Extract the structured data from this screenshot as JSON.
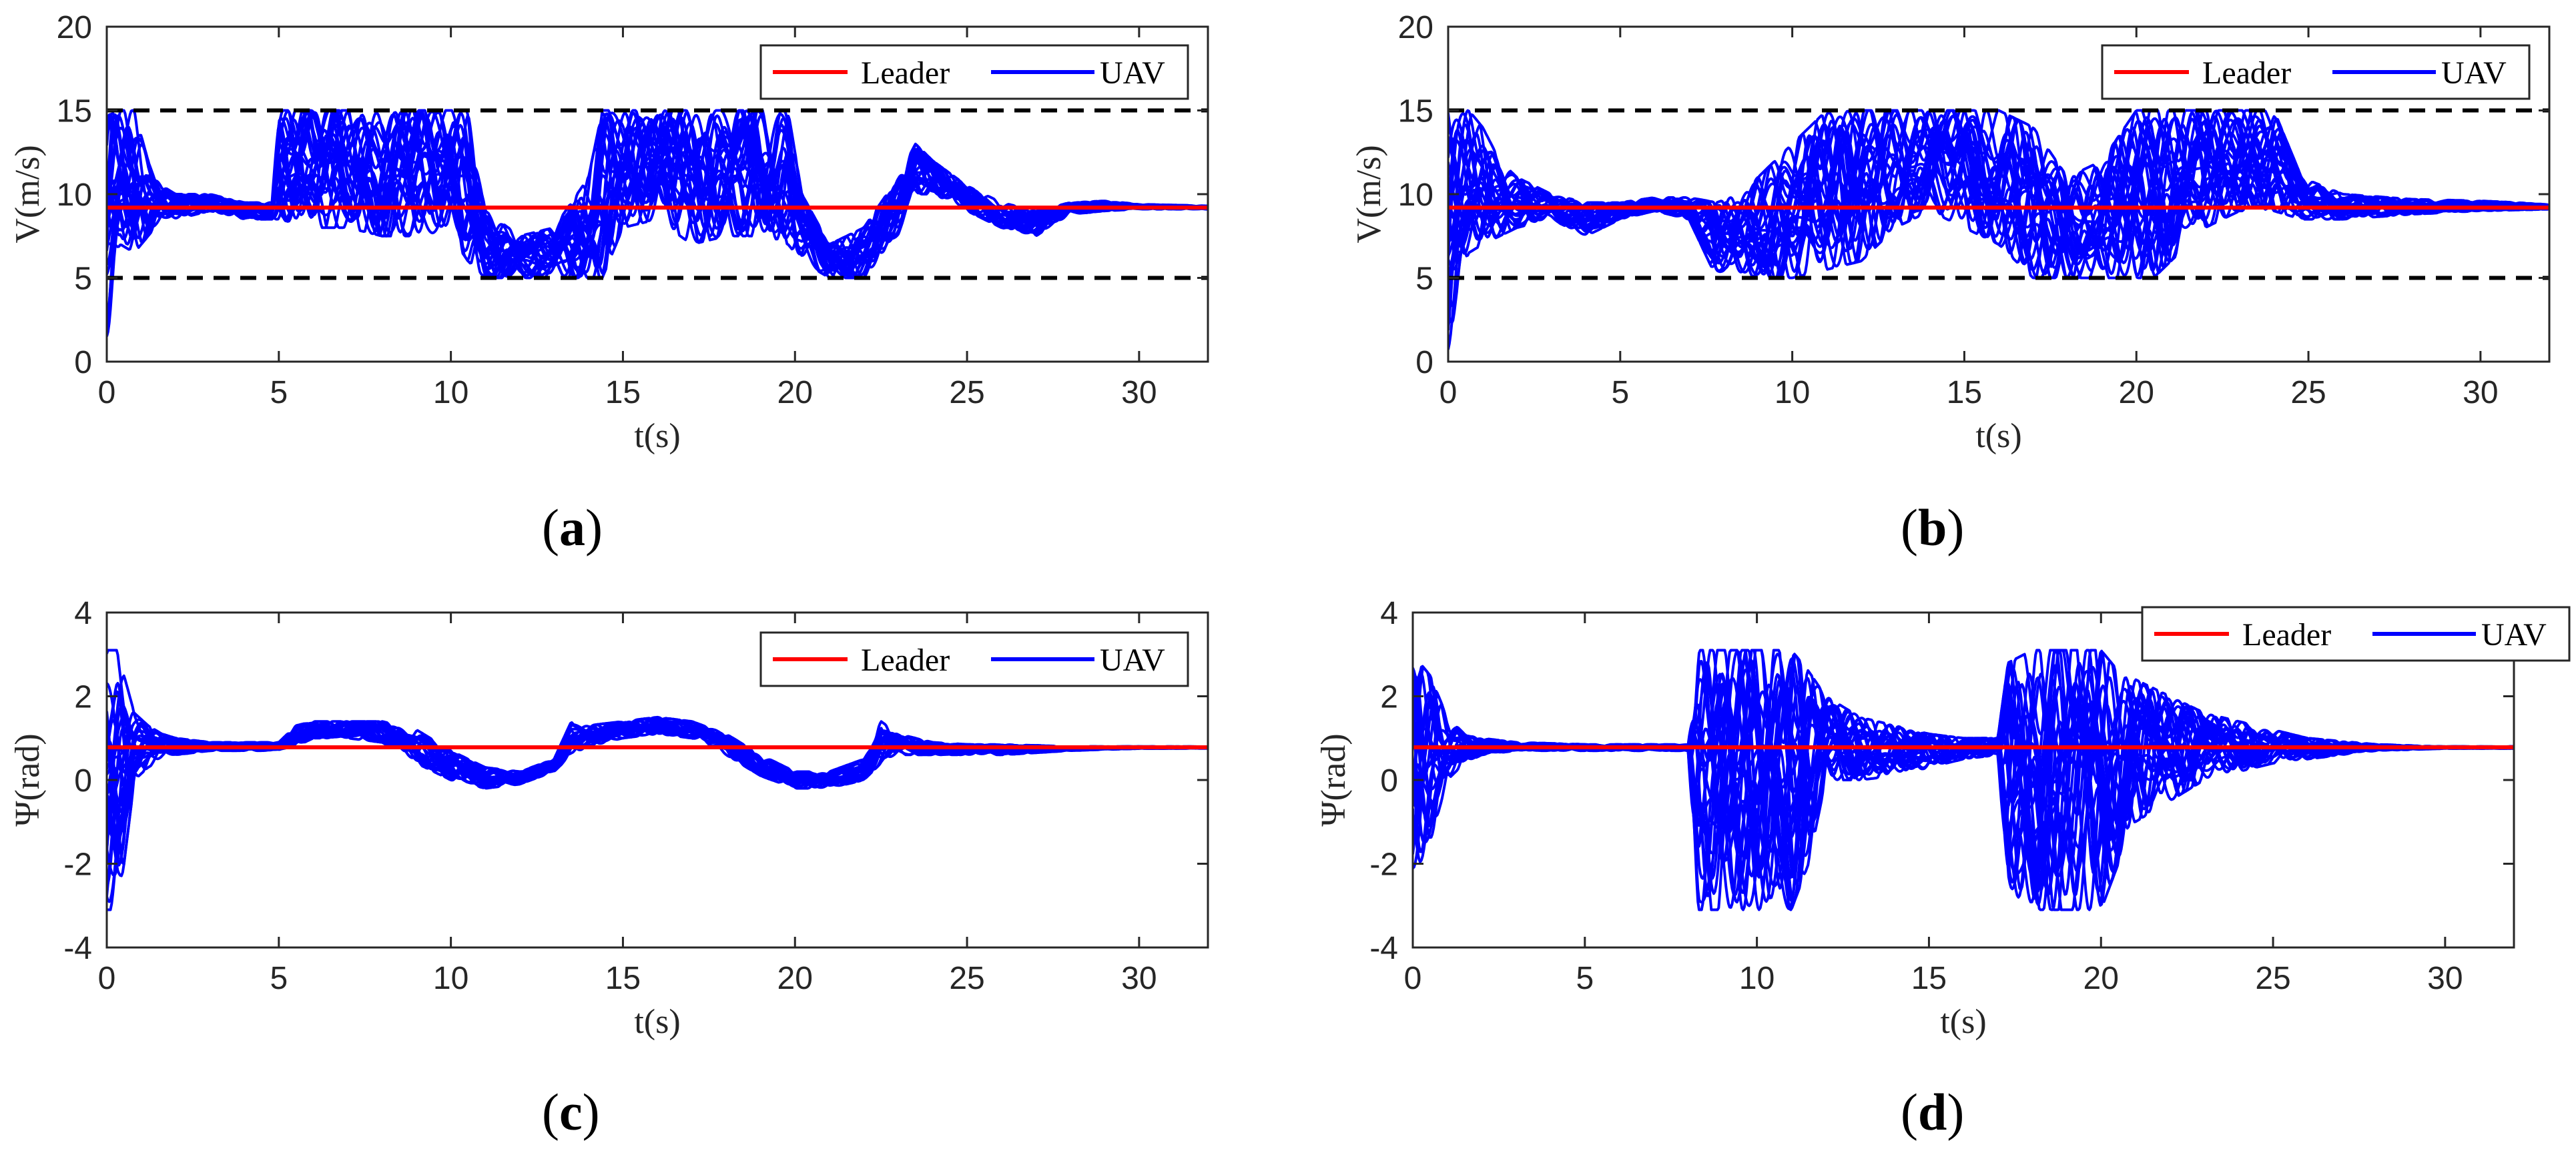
{
  "colors": {
    "leader": "#ff0000",
    "uav": "#0000ff",
    "bound": "#000000",
    "axis": "#262626"
  },
  "legend": {
    "leader_label": "Leader",
    "uav_label": "UAV"
  },
  "chart_data": [
    {
      "id": "a",
      "caption": "a",
      "type": "line",
      "xlabel": "t(s)",
      "ylabel": "V(m/s)",
      "xlim": [
        0,
        32
      ],
      "ylim": [
        0,
        20
      ],
      "xticks": [
        0,
        5,
        10,
        15,
        20,
        25,
        30
      ],
      "yticks": [
        0,
        5,
        10,
        15,
        20
      ],
      "legend_position": "top-right",
      "grid": false,
      "reference_lines": [
        {
          "name": "upper bound",
          "y": 15,
          "style": "dashed"
        },
        {
          "name": "lower bound",
          "y": 5,
          "style": "dashed"
        }
      ],
      "series": [
        {
          "name": "Leader",
          "x": [
            0,
            32
          ],
          "y": [
            9.2,
            9.2
          ]
        },
        {
          "name": "UAV",
          "x": [
            0,
            0.2,
            0.4,
            0.8,
            1.2,
            1.6,
            2,
            3,
            4,
            4.8,
            5,
            6,
            7,
            8,
            9,
            10,
            10.5,
            11,
            12,
            13,
            14,
            14.4,
            15,
            16,
            17,
            18,
            19,
            19.8,
            20.2,
            21,
            22,
            23,
            23.5,
            24,
            25,
            26,
            27,
            28,
            29,
            30,
            32
          ],
          "y_min": [
            0.5,
            5,
            7,
            6.5,
            7.5,
            8.5,
            8.5,
            9,
            8.5,
            8.5,
            8.5,
            8,
            8,
            7.5,
            7.5,
            7.5,
            6,
            5,
            5,
            5,
            5,
            5,
            8,
            8.5,
            7,
            7.5,
            7.5,
            7,
            6,
            5,
            5,
            7.5,
            10,
            10,
            9,
            8,
            7.5,
            8.8,
            9,
            9.1,
            9.1
          ],
          "y_max": [
            15,
            15,
            15,
            15,
            12,
            10.5,
            10,
            10,
            9.5,
            9.5,
            15,
            15,
            15,
            15,
            15,
            15,
            15,
            9,
            7.5,
            8,
            11,
            15,
            15,
            15,
            15,
            15,
            15,
            15,
            10,
            7,
            8,
            11,
            13,
            12,
            10.5,
            9.5,
            9,
            9.5,
            9.6,
            9.4,
            9.3
          ]
        }
      ]
    },
    {
      "id": "b",
      "caption": "b",
      "type": "line",
      "xlabel": "t(s)",
      "ylabel": "V(m/s)",
      "xlim": [
        0,
        32
      ],
      "ylim": [
        0,
        20
      ],
      "xticks": [
        0,
        5,
        10,
        15,
        20,
        25,
        30
      ],
      "yticks": [
        0,
        5,
        10,
        15,
        20
      ],
      "legend_position": "top-right",
      "grid": false,
      "reference_lines": [
        {
          "name": "upper bound",
          "y": 15,
          "style": "dashed"
        },
        {
          "name": "lower bound",
          "y": 5,
          "style": "dashed"
        }
      ],
      "series": [
        {
          "name": "Leader",
          "x": [
            0,
            32
          ],
          "y": [
            9.2,
            9.2
          ]
        },
        {
          "name": "UAV",
          "x": [
            0,
            0.3,
            0.6,
            1,
            1.5,
            2,
            3,
            4,
            5,
            6,
            7,
            7.8,
            8.5,
            9,
            10,
            11,
            12,
            13,
            14,
            15,
            16,
            17,
            18,
            19,
            20,
            20.5,
            21,
            22,
            23,
            24,
            24.8,
            26,
            28,
            30,
            32
          ],
          "y_min": [
            0,
            5,
            6.5,
            7,
            7.5,
            8,
            8.5,
            7.5,
            8.5,
            9,
            8.5,
            5,
            5,
            5,
            5,
            5.5,
            6,
            8,
            9,
            8,
            7,
            5,
            5,
            5,
            5,
            5,
            6,
            8,
            9,
            9,
            8.5,
            8.5,
            8.8,
            9,
            9.1
          ],
          "y_max": [
            15,
            15,
            15,
            14,
            12,
            11,
            10,
            9.5,
            9.5,
            9.8,
            9.8,
            9.5,
            10,
            11,
            13,
            15,
            15,
            15,
            15,
            15,
            15,
            14,
            11,
            12,
            15,
            15,
            15,
            15,
            15,
            15,
            11,
            10,
            9.7,
            9.6,
            9.4
          ]
        }
      ]
    },
    {
      "id": "c",
      "caption": "c",
      "type": "line",
      "xlabel": "t(s)",
      "ylabel": "Ψ(rad)",
      "xlim": [
        0,
        32
      ],
      "ylim": [
        -4,
        4
      ],
      "xticks": [
        0,
        5,
        10,
        15,
        20,
        25,
        30
      ],
      "yticks": [
        -4,
        -2,
        0,
        2,
        4
      ],
      "legend_position": "top-right",
      "grid": false,
      "reference_lines": [],
      "series": [
        {
          "name": "Leader",
          "x": [
            0,
            32
          ],
          "y": [
            0.78,
            0.78
          ]
        },
        {
          "name": "UAV",
          "x": [
            0,
            0.1,
            0.3,
            0.5,
            0.8,
            1.2,
            1.6,
            2,
            3,
            4,
            5,
            5.5,
            6,
            7,
            8,
            9,
            10,
            11,
            12,
            13,
            13.5,
            14,
            15,
            16,
            17,
            18,
            19,
            20,
            21,
            22,
            22.5,
            23,
            24,
            25,
            26,
            28,
            30,
            32
          ],
          "y_min": [
            -3.1,
            -3.1,
            -3.1,
            -2,
            0,
            0.3,
            0.5,
            0.6,
            0.7,
            0.7,
            0.7,
            0.8,
            1,
            1,
            0.9,
            0.4,
            0,
            -0.2,
            -0.1,
            0.2,
            0.6,
            0.8,
            1,
            1.1,
            1,
            0.6,
            0.1,
            -0.2,
            -0.2,
            0,
            0.4,
            0.6,
            0.6,
            0.6,
            0.6,
            0.7,
            0.75,
            0.75
          ],
          "y_max": [
            3.1,
            3.1,
            3.1,
            2.5,
            1.6,
            1.3,
            1.1,
            1,
            0.9,
            0.9,
            0.9,
            1.3,
            1.4,
            1.4,
            1.4,
            1.2,
            0.7,
            0.3,
            0.2,
            0.5,
            1.4,
            1.3,
            1.4,
            1.5,
            1.4,
            1.1,
            0.6,
            0.2,
            0.2,
            0.5,
            1.4,
            1.1,
            0.9,
            0.85,
            0.85,
            0.8,
            0.8,
            0.8
          ]
        }
      ]
    },
    {
      "id": "d",
      "caption": "d",
      "type": "line",
      "xlabel": "t(s)",
      "ylabel": "Ψ(rad)",
      "xlim": [
        0,
        32
      ],
      "ylim": [
        -4,
        4
      ],
      "xticks": [
        0,
        5,
        10,
        15,
        20,
        25,
        30
      ],
      "yticks": [
        -4,
        -2,
        0,
        2,
        4
      ],
      "legend_position": "top-right",
      "grid": false,
      "reference_lines": [],
      "series": [
        {
          "name": "Leader",
          "x": [
            0,
            32
          ],
          "y": [
            0.78,
            0.78
          ]
        },
        {
          "name": "UAV",
          "x": [
            0,
            0.2,
            0.5,
            1,
            1.5,
            2,
            3,
            5,
            7,
            8,
            8.3,
            9,
            10,
            11,
            11.5,
            12,
            13,
            14,
            15,
            16,
            17,
            17.3,
            18,
            19,
            20,
            20.5,
            21,
            22,
            23,
            24,
            25,
            26,
            28,
            30,
            32
          ],
          "y_min": [
            -2.3,
            -2.3,
            -1.5,
            0,
            0.4,
            0.6,
            0.7,
            0.7,
            0.7,
            0.7,
            -3.1,
            -3.1,
            -3.1,
            -3.1,
            -2,
            0,
            0,
            0.1,
            0.3,
            0.5,
            0.6,
            -3.1,
            -3.1,
            -3.1,
            -3.1,
            -2,
            -1,
            -0.5,
            0,
            0.2,
            0.4,
            0.5,
            0.7,
            0.75,
            0.75
          ],
          "y_max": [
            2.8,
            2.8,
            2.5,
            1.5,
            1.1,
            1,
            0.9,
            0.85,
            0.85,
            0.85,
            3.1,
            3.1,
            3.1,
            3.1,
            2.6,
            2,
            1.5,
            1.3,
            1.1,
            1,
            1,
            2.8,
            3.1,
            3.1,
            3.1,
            2.6,
            2.4,
            2,
            1.6,
            1.4,
            1.2,
            1,
            0.85,
            0.8,
            0.8
          ]
        }
      ]
    }
  ]
}
